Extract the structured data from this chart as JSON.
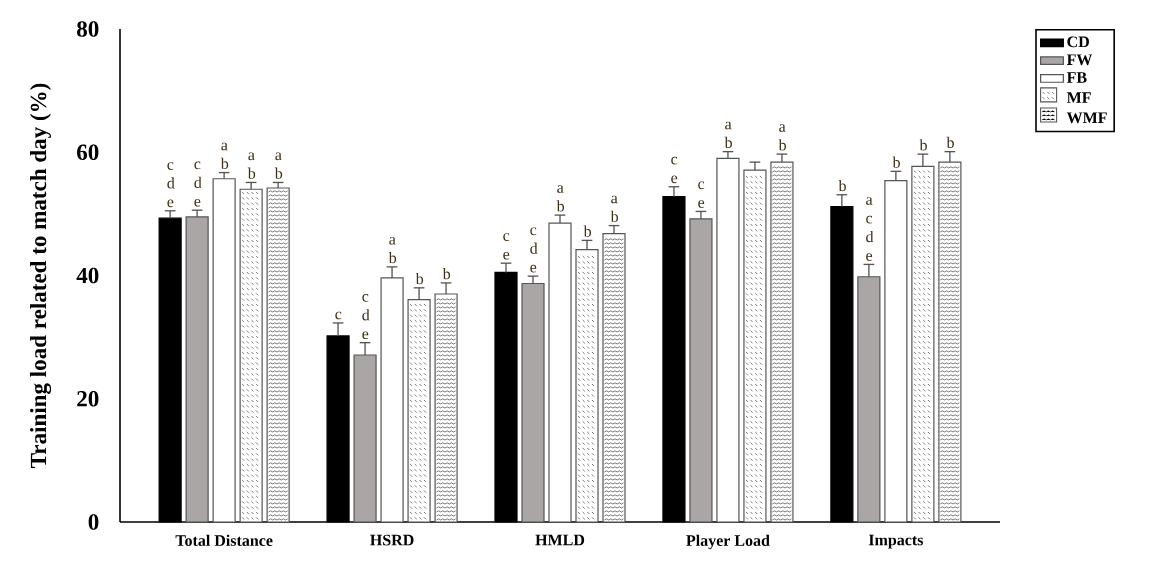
{
  "chart_data": {
    "type": "bar",
    "ylabel": "Training load related to match day (%)",
    "categories": [
      "Total Distance",
      "HSRD",
      "HMLD",
      "Player Load",
      "Impacts"
    ],
    "series": [
      {
        "name": "CD",
        "color": "#000000",
        "values": [
          49.3,
          30.2,
          40.5,
          52.8,
          51.2
        ],
        "errors": [
          1.2,
          2.1,
          1.5,
          1.6,
          1.9
        ],
        "value_labels": [
          "c d e",
          "c",
          "c e",
          "c e",
          "b"
        ]
      },
      {
        "name": "FW",
        "color": "#aaa6a6",
        "values": [
          49.5,
          27.1,
          38.7,
          49.2,
          39.8
        ],
        "errors": [
          1.1,
          2.0,
          1.2,
          1.2,
          2.0
        ],
        "value_labels": [
          "c d e",
          "c d e",
          "c d e",
          "c e",
          "a c d e"
        ]
      },
      {
        "name": "FB",
        "color": "#ffffff",
        "values": [
          55.7,
          39.6,
          48.5,
          59.0,
          55.4
        ],
        "errors": [
          1.0,
          1.8,
          1.3,
          1.1,
          1.5
        ],
        "value_labels": [
          "a b",
          "a b",
          "a b",
          "a b",
          "b"
        ]
      },
      {
        "name": "MF",
        "color": "#ffffff",
        "values": [
          54.0,
          36.1,
          44.2,
          57.1,
          57.7
        ],
        "errors": [
          1.1,
          1.9,
          1.5,
          1.3,
          2.0
        ],
        "value_labels": [
          "a b",
          "b",
          "b",
          null,
          "b"
        ]
      },
      {
        "name": "WMF",
        "color": "#ffffff",
        "values": [
          54.2,
          37.0,
          46.8,
          58.4,
          58.4
        ],
        "errors": [
          0.9,
          1.8,
          1.3,
          1.3,
          1.7
        ],
        "value_labels": [
          "a b",
          "b",
          "a b",
          "a b",
          "b"
        ]
      }
    ],
    "ylim": [
      0,
      80
    ],
    "yticks": [
      0,
      20,
      40,
      60,
      80
    ],
    "grid": false,
    "legend": "top right"
  }
}
